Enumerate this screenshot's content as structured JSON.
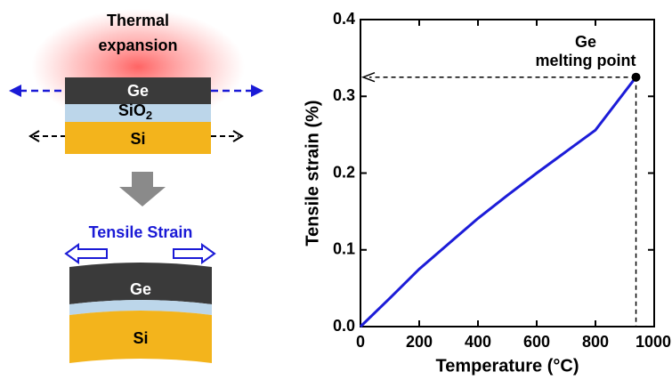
{
  "diagram": {
    "glow_label": [
      "Thermal",
      "expansion"
    ],
    "top_stack": {
      "ge": "Ge",
      "sio2": [
        "SiO",
        "2"
      ],
      "si": "Si"
    },
    "strain_label": "Tensile Strain",
    "bottom_stack": {
      "ge": "Ge",
      "si": "Si"
    }
  },
  "chart_data": {
    "type": "line",
    "x": [
      0,
      100,
      200,
      300,
      400,
      500,
      600,
      700,
      800,
      938
    ],
    "series": [
      {
        "color": "#1c1cd8",
        "values": [
          0,
          0.037,
          0.075,
          0.108,
          0.141,
          0.171,
          0.2,
          0.228,
          0.256,
          0.325
        ]
      }
    ],
    "xlabel": "Temperature (°C)",
    "ylabel": "Tensile strain (%)",
    "annotation": [
      "Ge",
      "melting point"
    ],
    "xlim": [
      0,
      1000
    ],
    "xticks": [
      0,
      200,
      400,
      600,
      800,
      1000
    ],
    "ylim": [
      0,
      0.4
    ],
    "yticks": [
      {
        "value": 0,
        "label": "0.0"
      },
      0.1,
      0.2,
      0.3,
      0.4
    ]
  }
}
